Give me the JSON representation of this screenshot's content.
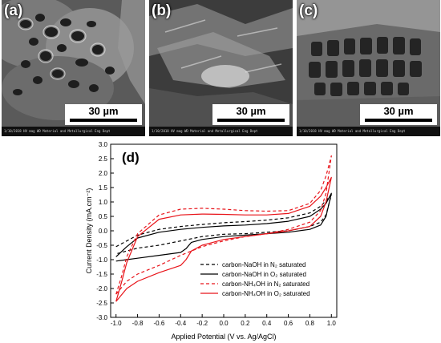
{
  "panels": [
    {
      "letter": "(a)",
      "scale": "30 µm",
      "info": "1/10/2018  HV  mag  WD   Material and Metallurgical Eng Dept"
    },
    {
      "letter": "(b)",
      "scale": "30 µm",
      "info": "1/10/2018  HV  mag  WD   Material and Metallurgical Eng Dept"
    },
    {
      "letter": "(c)",
      "scale": "30 µm",
      "info": "1/10/2018  HV  mag  WD   Material and Metallurgical Eng Dept"
    }
  ],
  "chart_data": {
    "type": "line",
    "panel_label": "(d)",
    "xlabel": "Applied Potential (V vs. Ag/AgCl)",
    "ylabel": "Current Density (mA.cm⁻²)",
    "xlim": [
      -1.05,
      1.05
    ],
    "ylim": [
      -3.0,
      3.0
    ],
    "xticks": [
      "-1.0",
      "-0.8",
      "-0.6",
      "-0.4",
      "-0.2",
      "0.0",
      "0.2",
      "0.4",
      "0.6",
      "0.8",
      "1.0"
    ],
    "yticks": [
      "-3.0",
      "-2.5",
      "-2.0",
      "-1.5",
      "-1.0",
      "-0.5",
      "0.0",
      "0.5",
      "1.0",
      "1.5",
      "2.0",
      "2.5",
      "3.0"
    ],
    "legend_position": "bottom-right",
    "series": [
      {
        "name": "carbon-NaOH in N₂ saturated",
        "color": "#000000",
        "dash": true,
        "x": [
          -1.0,
          -0.9,
          -0.8,
          -0.6,
          -0.4,
          -0.2,
          0.0,
          0.2,
          0.4,
          0.6,
          0.8,
          0.9,
          0.95,
          1.0,
          0.95,
          0.9,
          0.8,
          0.6,
          0.4,
          0.2,
          0.0,
          -0.2,
          -0.4,
          -0.6,
          -0.8,
          -0.9,
          -0.95,
          -1.0
        ],
        "y": [
          -0.55,
          -0.35,
          -0.15,
          0.05,
          0.15,
          0.22,
          0.28,
          0.32,
          0.37,
          0.45,
          0.62,
          0.85,
          1.05,
          1.25,
          0.55,
          0.3,
          0.15,
          0.0,
          -0.05,
          -0.1,
          -0.12,
          -0.2,
          -0.35,
          -0.5,
          -0.6,
          -0.7,
          -0.75,
          -0.8
        ]
      },
      {
        "name": "carbon-NaOH in O₂ saturated",
        "color": "#000000",
        "dash": false,
        "x": [
          -1.0,
          -0.9,
          -0.8,
          -0.6,
          -0.4,
          -0.2,
          0.0,
          0.2,
          0.4,
          0.6,
          0.8,
          0.9,
          0.95,
          1.0,
          0.95,
          0.9,
          0.8,
          0.6,
          0.4,
          0.2,
          0.0,
          -0.2,
          -0.3,
          -0.35,
          -0.4,
          -0.6,
          -0.8,
          -0.9,
          -1.0
        ],
        "y": [
          -0.9,
          -0.55,
          -0.25,
          -0.05,
          0.05,
          0.12,
          0.17,
          0.2,
          0.25,
          0.33,
          0.5,
          0.75,
          0.95,
          1.3,
          0.5,
          0.2,
          0.05,
          -0.05,
          -0.1,
          -0.15,
          -0.2,
          -0.3,
          -0.4,
          -0.62,
          -0.75,
          -0.85,
          -0.95,
          -1.0,
          -1.05
        ]
      },
      {
        "name": "carbon-NH₄OH in N₂ saturated",
        "color": "#e8141a",
        "dash": true,
        "x": [
          -1.0,
          -0.95,
          -0.9,
          -0.8,
          -0.6,
          -0.4,
          -0.2,
          0.0,
          0.2,
          0.4,
          0.6,
          0.8,
          0.9,
          0.95,
          1.0,
          0.95,
          0.9,
          0.8,
          0.6,
          0.4,
          0.2,
          0.0,
          -0.2,
          -0.4,
          -0.6,
          -0.8,
          -0.9,
          -1.0
        ],
        "y": [
          -2.2,
          -1.6,
          -0.9,
          -0.1,
          0.55,
          0.75,
          0.78,
          0.75,
          0.7,
          0.68,
          0.7,
          0.95,
          1.4,
          1.9,
          2.6,
          1.3,
          0.7,
          0.3,
          0.05,
          -0.1,
          -0.2,
          -0.35,
          -0.55,
          -0.85,
          -1.2,
          -1.5,
          -1.75,
          -2.2
        ]
      },
      {
        "name": "carbon-NH₄OH in O₂ saturated",
        "color": "#e8141a",
        "dash": false,
        "x": [
          -1.0,
          -0.95,
          -0.9,
          -0.8,
          -0.6,
          -0.4,
          -0.2,
          0.0,
          0.2,
          0.4,
          0.6,
          0.8,
          0.9,
          0.95,
          1.0,
          0.95,
          0.9,
          0.8,
          0.6,
          0.4,
          0.2,
          0.0,
          -0.2,
          -0.3,
          -0.35,
          -0.4,
          -0.6,
          -0.8,
          -0.9,
          -1.0
        ],
        "y": [
          -2.45,
          -1.8,
          -1.1,
          -0.2,
          0.4,
          0.55,
          0.58,
          0.57,
          0.55,
          0.55,
          0.6,
          0.85,
          1.2,
          1.5,
          1.85,
          1.0,
          0.5,
          0.15,
          0.0,
          -0.1,
          -0.2,
          -0.3,
          -0.5,
          -0.7,
          -1.0,
          -1.2,
          -1.45,
          -1.75,
          -2.0,
          -2.45
        ]
      }
    ]
  }
}
